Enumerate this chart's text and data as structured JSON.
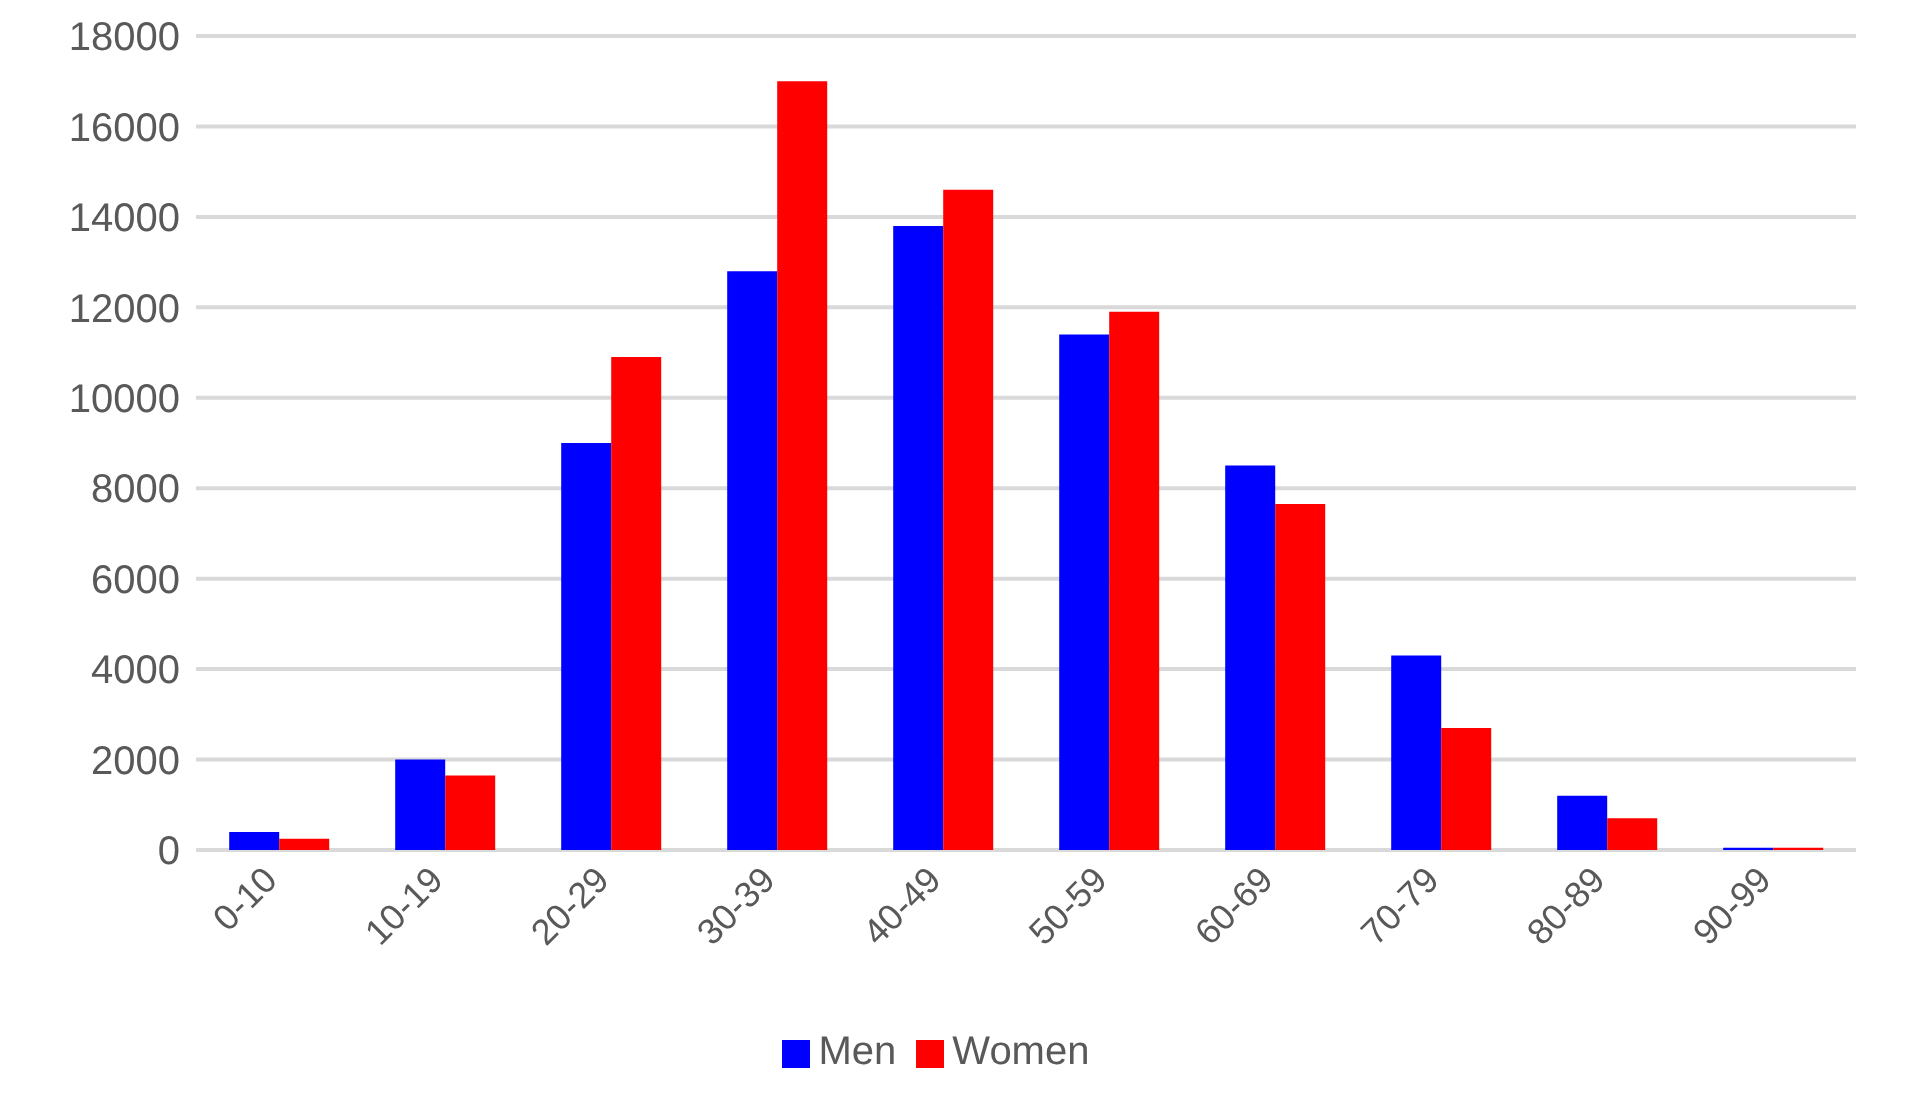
{
  "chart_data": {
    "type": "bar",
    "categories": [
      "0-10",
      "10-19",
      "20-29",
      "30-39",
      "40-49",
      "50-59",
      "60-69",
      "70-79",
      "80-89",
      "90-99"
    ],
    "series": [
      {
        "name": "Men",
        "color": "#0000ff",
        "values": [
          400,
          2000,
          9000,
          12800,
          13800,
          11400,
          8500,
          4300,
          1200,
          50
        ]
      },
      {
        "name": "Women",
        "color": "#ff0000",
        "values": [
          250,
          1650,
          10900,
          17000,
          14600,
          11900,
          7650,
          2700,
          700,
          50
        ]
      }
    ],
    "ylim": [
      0,
      18000
    ],
    "yticks": [
      0,
      2000,
      4000,
      6000,
      8000,
      10000,
      12000,
      14000,
      16000,
      18000
    ],
    "grid": "y",
    "legend": "bottom"
  }
}
